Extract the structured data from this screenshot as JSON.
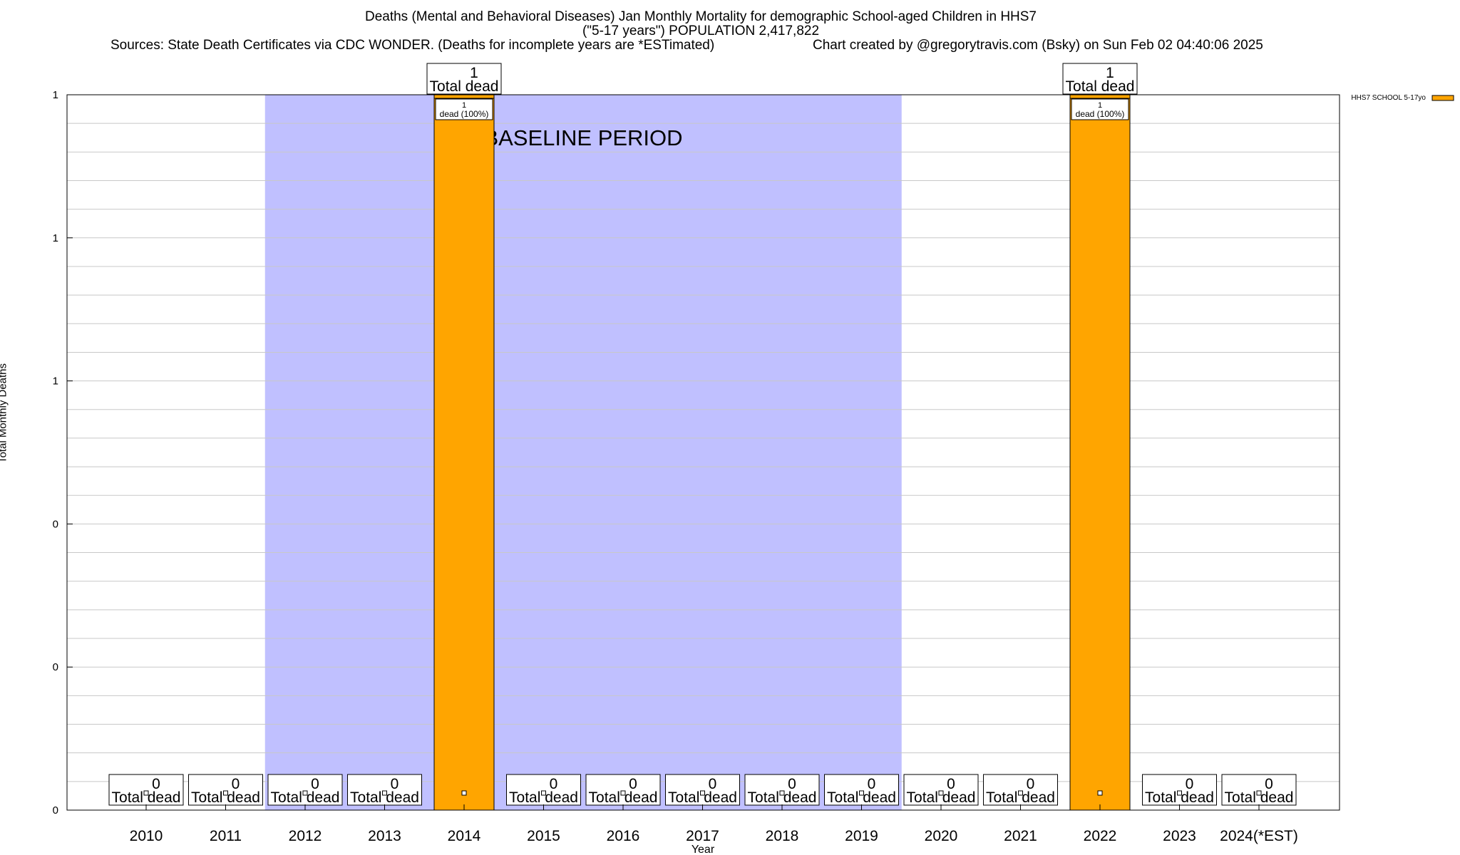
{
  "header": {
    "title_line1": "Deaths (Mental and Behavioral Diseases) Jan Monthly Mortality for demographic School-aged Children in HHS7",
    "title_line2": "(\"5-17 years\") POPULATION 2,417,822",
    "sources": "Sources: State Death Certificates via CDC WONDER. (Deaths for incomplete years are *ESTimated)",
    "credit": "Chart created by @gregorytravis.com (Bsky) on Sun Feb 02 04:40:06 2025"
  },
  "chart_data": {
    "type": "bar",
    "title": "Deaths (Mental and Behavioral Diseases) Jan Monthly Mortality for demographic School-aged Children in HHS7",
    "xlabel": "Year",
    "ylabel": "Total Monthly Deaths",
    "ylim": [
      0,
      1
    ],
    "y_tick_labels": [
      "0",
      "0",
      "0",
      "1",
      "1",
      "1"
    ],
    "categories": [
      "2010",
      "2011",
      "2012",
      "2013",
      "2014",
      "2015",
      "2016",
      "2017",
      "2018",
      "2019",
      "2020",
      "2021",
      "2022",
      "2023",
      "2024(*EST)"
    ],
    "series": [
      {
        "name": "HHS7 SCHOOL 5-17yo",
        "values": [
          0,
          0,
          0,
          0,
          1,
          0,
          0,
          0,
          0,
          0,
          0,
          0,
          1,
          0,
          0
        ],
        "color": "#ffa500"
      }
    ],
    "total_labels": [
      "0",
      "0",
      "0",
      "0",
      "1",
      "0",
      "0",
      "0",
      "0",
      "0",
      "0",
      "0",
      "1",
      "0",
      "0"
    ],
    "total_label_suffix": "Total dead",
    "inner_labels": [
      {
        "category_index": 4,
        "line1": "1",
        "line2": "dead (100%)"
      },
      {
        "category_index": 12,
        "line1": "1",
        "line2": "dead (100%)"
      }
    ],
    "baseline_period": {
      "label": "BASELINE PERIOD",
      "from": "2012",
      "to": "2019",
      "color": "#c0c0ff"
    },
    "grid": true,
    "legend_placement": "top-right"
  }
}
